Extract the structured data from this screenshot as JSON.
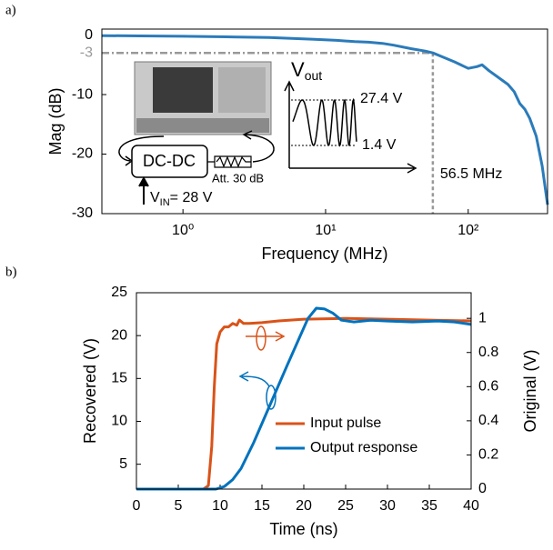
{
  "chart_data": [
    {
      "type": "line",
      "label": "a)",
      "xlabel": "Frequency (MHz)",
      "ylabel": "Mag (dB)",
      "log_x": true,
      "xlim": [
        0.27,
        360
      ],
      "xticks": [
        {
          "value": 1,
          "label": "10⁰"
        },
        {
          "value": 10,
          "label": "10¹"
        },
        {
          "value": 100,
          "label": "10²"
        }
      ],
      "ylim": [
        -30,
        1
      ],
      "yticks": [
        -30,
        -20,
        -10,
        0
      ],
      "cutoff": {
        "y": -3,
        "x": 56.5,
        "label": "56.5 MHz",
        "color": "#999999"
      },
      "series": [
        {
          "color": "#2b7bba",
          "x": [
            0.27,
            0.5,
            1,
            2,
            4,
            8,
            12,
            16,
            20,
            25,
            30,
            40,
            50,
            56.5,
            65,
            80,
            100,
            115,
            125,
            140,
            160,
            190,
            210,
            230,
            250,
            270,
            300,
            330,
            360
          ],
          "values": [
            -0.1,
            -0.15,
            -0.2,
            -0.3,
            -0.4,
            -0.7,
            -0.9,
            -1.1,
            -1.2,
            -1.4,
            -1.7,
            -2.3,
            -2.7,
            -3,
            -3.6,
            -4.5,
            -5.6,
            -5.3,
            -5.0,
            -6.0,
            -7.0,
            -8.3,
            -9.5,
            -11.5,
            -12.5,
            -14,
            -17,
            -22,
            -28.5
          ]
        }
      ],
      "inset": {
        "vout": "V",
        "vout_sub": "out",
        "high": "27.4 V",
        "low": "1.4 V",
        "converter": "DC-DC",
        "attenuator": "Att. 30 dB",
        "vin": "V",
        "vin_sub": "IN",
        "vin_value": "= 28 V"
      }
    },
    {
      "type": "line",
      "label": "b)",
      "xlabel": "Time (ns)",
      "ylabel": "Recovered (V)",
      "y2label": "Original (V)",
      "xlim": [
        0,
        40
      ],
      "xticks": [
        0,
        5,
        10,
        15,
        20,
        25,
        30,
        35,
        40
      ],
      "ylim": [
        2.1,
        25
      ],
      "yticks": [
        5,
        10,
        15,
        20,
        25
      ],
      "y2lim": [
        0,
        1.15
      ],
      "y2ticks": [
        0,
        0.2,
        0.4,
        0.6,
        0.8,
        1
      ],
      "legend": "lower right",
      "series": [
        {
          "name": "Input pulse",
          "color": "#d95319",
          "axis": "y2",
          "x": [
            0,
            8,
            8.6,
            9,
            9.3,
            9.6,
            10,
            10.5,
            11,
            11.5,
            12,
            12.3,
            12.8,
            13.5,
            15,
            17,
            20,
            25,
            30,
            35,
            40
          ],
          "values": [
            0,
            0,
            0.02,
            0.25,
            0.6,
            0.85,
            0.92,
            0.95,
            0.95,
            0.97,
            0.96,
            0.99,
            0.97,
            0.97,
            0.975,
            0.985,
            0.995,
            1.0,
            0.995,
            0.99,
            0.985
          ]
        },
        {
          "name": "Output response",
          "color": "#0072bd",
          "x": [
            0,
            9.5,
            10.5,
            11.5,
            12.5,
            14,
            16,
            18,
            19.5,
            20.5,
            21.5,
            22.5,
            23.5,
            24.5,
            26,
            28,
            30,
            33,
            36,
            38,
            40
          ],
          "values": [
            2.1,
            2.1,
            2.4,
            3.2,
            4.5,
            7.5,
            12,
            16.5,
            19.8,
            22,
            23.2,
            23.1,
            22.6,
            21.8,
            21.6,
            21.8,
            21.7,
            21.6,
            21.7,
            21.6,
            21.3
          ]
        }
      ]
    }
  ]
}
